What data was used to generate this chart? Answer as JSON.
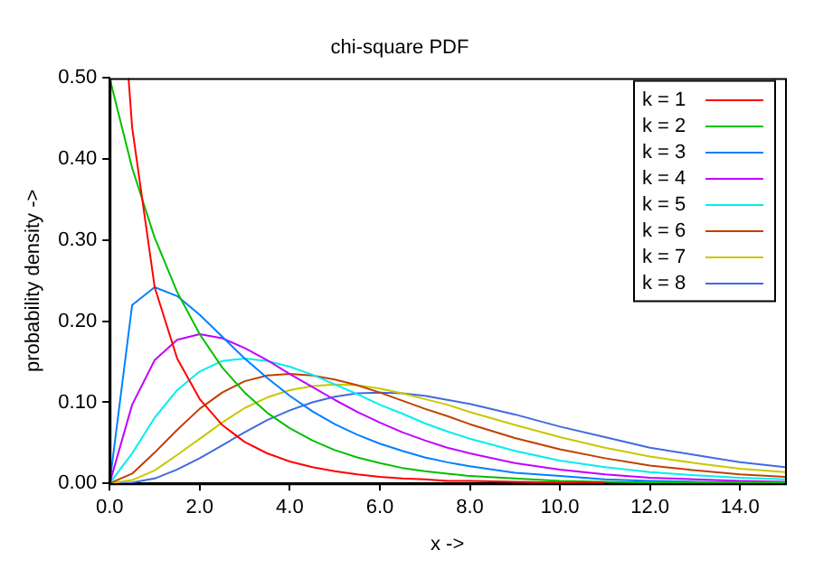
{
  "chart_data": {
    "type": "line",
    "title": "chi-square PDF",
    "xlabel": "x ->",
    "ylabel": "probability density ->",
    "x": [
      0,
      0.5,
      1,
      1.5,
      2,
      2.5,
      3,
      3.5,
      4,
      4.5,
      5,
      5.5,
      6,
      6.5,
      7,
      7.5,
      8,
      9,
      10,
      11,
      12,
      13,
      14,
      15
    ],
    "xlim": [
      0,
      15
    ],
    "xticks": [
      {
        "value": 0,
        "label": "0.0"
      },
      {
        "value": 2,
        "label": "2.0"
      },
      {
        "value": 4,
        "label": "4.0"
      },
      {
        "value": 6,
        "label": "6.0"
      },
      {
        "value": 8,
        "label": "8.0"
      },
      {
        "value": 10,
        "label": "10.0"
      },
      {
        "value": 12,
        "label": "12.0"
      },
      {
        "value": 14,
        "label": "14.0"
      }
    ],
    "ylim": [
      0,
      0.5
    ],
    "yticks": [
      {
        "value": 0,
        "label": "0.00"
      },
      {
        "value": 0.1,
        "label": "0.10"
      },
      {
        "value": 0.2,
        "label": "0.20"
      },
      {
        "value": 0.3,
        "label": "0.30"
      },
      {
        "value": 0.4,
        "label": "0.40"
      },
      {
        "value": 0.5,
        "label": "0.50"
      }
    ],
    "grid": false,
    "legend": "top right",
    "marker": "none",
    "line_style": "solid",
    "series": [
      {
        "name": "k = 1",
        "color": "#ff0000",
        "x": [
          0.42,
          0.5,
          1,
          1.5,
          2,
          2.5,
          3,
          3.5,
          4,
          4.5,
          5,
          5.5,
          6,
          6.5,
          7,
          7.5,
          8,
          9,
          10,
          11
        ],
        "values": [
          0.5,
          0.439,
          0.242,
          0.154,
          0.104,
          0.072,
          0.051,
          0.037,
          0.027,
          0.02,
          0.015,
          0.011,
          0.008,
          0.006,
          0.005,
          0.003,
          0.003,
          0.002,
          0.001,
          0.001
        ]
      },
      {
        "name": "k = 2",
        "color": "#00c000",
        "values": [
          0.5,
          0.389,
          0.303,
          0.236,
          0.184,
          0.143,
          0.112,
          0.087,
          0.068,
          0.053,
          0.041,
          0.032,
          0.025,
          0.019,
          0.015,
          0.012,
          0.009,
          0.006,
          0.003,
          0.002,
          0.001,
          0.001,
          0.001,
          0.001
        ]
      },
      {
        "name": "k = 3",
        "color": "#0080ff",
        "values": [
          0,
          0.22,
          0.242,
          0.231,
          0.208,
          0.181,
          0.154,
          0.13,
          0.108,
          0.089,
          0.073,
          0.06,
          0.049,
          0.04,
          0.032,
          0.026,
          0.021,
          0.013,
          0.009,
          0.005,
          0.003,
          0.002,
          0.001,
          0.001
        ]
      },
      {
        "name": "k = 4",
        "color": "#c000ff",
        "values": [
          0,
          0.097,
          0.152,
          0.177,
          0.184,
          0.179,
          0.167,
          0.152,
          0.135,
          0.119,
          0.103,
          0.088,
          0.075,
          0.063,
          0.053,
          0.044,
          0.037,
          0.025,
          0.017,
          0.011,
          0.007,
          0.005,
          0.003,
          0.002
        ]
      },
      {
        "name": "k = 5",
        "color": "#00eeee",
        "values": [
          0,
          0.037,
          0.081,
          0.115,
          0.138,
          0.151,
          0.154,
          0.151,
          0.144,
          0.134,
          0.122,
          0.11,
          0.097,
          0.086,
          0.074,
          0.064,
          0.055,
          0.04,
          0.028,
          0.02,
          0.014,
          0.01,
          0.007,
          0.005
        ]
      },
      {
        "name": "k = 6",
        "color": "#c04000",
        "values": [
          0,
          0.012,
          0.038,
          0.066,
          0.092,
          0.112,
          0.126,
          0.133,
          0.135,
          0.133,
          0.128,
          0.121,
          0.112,
          0.102,
          0.092,
          0.083,
          0.073,
          0.056,
          0.042,
          0.031,
          0.022,
          0.016,
          0.011,
          0.008
        ]
      },
      {
        "name": "k = 7",
        "color": "#c8c800",
        "values": [
          0,
          0.004,
          0.016,
          0.035,
          0.055,
          0.075,
          0.093,
          0.106,
          0.115,
          0.12,
          0.122,
          0.121,
          0.117,
          0.111,
          0.104,
          0.097,
          0.088,
          0.072,
          0.057,
          0.044,
          0.033,
          0.025,
          0.018,
          0.014
        ]
      },
      {
        "name": "k = 8",
        "color": "#4169e1",
        "values": [
          0,
          0.001,
          0.006,
          0.017,
          0.031,
          0.047,
          0.063,
          0.078,
          0.09,
          0.1,
          0.107,
          0.111,
          0.112,
          0.111,
          0.108,
          0.103,
          0.098,
          0.085,
          0.07,
          0.057,
          0.044,
          0.035,
          0.026,
          0.02
        ]
      }
    ]
  }
}
